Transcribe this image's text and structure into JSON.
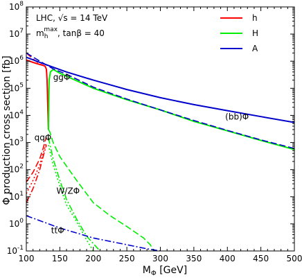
{
  "chart_data": {
    "type": "line",
    "title_lines": [
      "LHC, √s = 14 TeV",
      "m_h^max, tanβ = 40"
    ],
    "title_line1": "LHC, √s = 14 TeV",
    "title_line2_prefix": "m",
    "title_line2_sub": "h",
    "title_line2_sup": "max",
    "title_line2_rest": ", tanβ = 40",
    "xlabel": "M",
    "xlabel_sub": "Φ",
    "xlabel_rest": " [GeV]",
    "ylabel": "Φ production cross section [fb]",
    "xlim": [
      100,
      500
    ],
    "ylim": [
      0.1,
      100000000
    ],
    "yscale": "log",
    "x_ticks": [
      100,
      150,
      200,
      250,
      300,
      350,
      400,
      450,
      500
    ],
    "y_tick_exponents": [
      -1,
      0,
      1,
      2,
      3,
      4,
      5,
      6,
      7,
      8
    ],
    "y_tick_base": "10",
    "legend_position": "top-right",
    "legend": [
      {
        "label": "h",
        "color": "#ff0000"
      },
      {
        "label": "H",
        "color": "#00ee00"
      },
      {
        "label": "A",
        "color": "#0000cc"
      }
    ],
    "annotations": [
      {
        "text": "ggΦ",
        "at": [
          140,
          200000
        ]
      },
      {
        "text": "(bb)Φ",
        "at": [
          432,
          7000
        ]
      },
      {
        "text": "qqΦ",
        "at": [
          112,
          1200
        ]
      },
      {
        "text": "W/ZΦ",
        "at": [
          145,
          13
        ]
      },
      {
        "text": "ttΦ",
        "at": [
          137,
          0.45
        ]
      }
    ],
    "series": [
      {
        "process": "gg",
        "higgs": "h",
        "color": "#ff0000",
        "dash": "solid",
        "points": [
          [
            100,
            1100000
          ],
          [
            110,
            900000
          ],
          [
            120,
            750000
          ],
          [
            125,
            700000
          ],
          [
            128,
            650000
          ],
          [
            130,
            500000
          ],
          [
            131,
            200000
          ],
          [
            132,
            20000
          ],
          [
            133,
            3000
          ]
        ]
      },
      {
        "process": "bb",
        "higgs": "h",
        "color": "#ff0000",
        "dash": "dashed",
        "points": [
          [
            100,
            2000000
          ],
          [
            110,
            1200000
          ],
          [
            120,
            800000
          ],
          [
            125,
            700000
          ],
          [
            128,
            650000
          ],
          [
            130,
            500000
          ],
          [
            131,
            200000
          ],
          [
            132,
            20000
          ],
          [
            133,
            3000
          ]
        ]
      },
      {
        "process": "gg",
        "higgs": "H",
        "color": "#00ee00",
        "dash": "solid",
        "points": [
          [
            133,
            3000
          ],
          [
            134,
            200000
          ],
          [
            136,
            400000
          ],
          [
            140,
            500000
          ],
          [
            150,
            360000
          ],
          [
            200,
            100000
          ],
          [
            250,
            38000
          ],
          [
            300,
            16000
          ],
          [
            350,
            6000
          ],
          [
            400,
            2700
          ],
          [
            450,
            1200
          ],
          [
            500,
            550
          ]
        ]
      },
      {
        "process": "bb",
        "higgs": "H",
        "color": "#00ee00",
        "dash": "dashed",
        "points": [
          [
            133,
            3000
          ],
          [
            134,
            200000
          ],
          [
            136,
            400000
          ],
          [
            140,
            500000
          ],
          [
            150,
            360000
          ],
          [
            200,
            100000
          ],
          [
            250,
            38000
          ],
          [
            300,
            16000
          ],
          [
            350,
            6000
          ],
          [
            400,
            2700
          ],
          [
            450,
            1200
          ],
          [
            500,
            550
          ]
        ]
      },
      {
        "process": "gg",
        "higgs": "A",
        "color": "#0000cc",
        "dash": "solid",
        "points": [
          [
            100,
            1400000
          ],
          [
            120,
            900000
          ],
          [
            140,
            600000
          ],
          [
            160,
            400000
          ],
          [
            200,
            200000
          ],
          [
            250,
            90000
          ],
          [
            300,
            45000
          ],
          [
            350,
            25000
          ],
          [
            400,
            15000
          ],
          [
            450,
            9000
          ],
          [
            500,
            5500
          ]
        ]
      },
      {
        "process": "bb",
        "higgs": "A",
        "color": "#0000cc",
        "dash": "dashed",
        "points": [
          [
            100,
            2000000
          ],
          [
            120,
            1000000
          ],
          [
            140,
            520000
          ],
          [
            160,
            330000
          ],
          [
            200,
            110000
          ],
          [
            250,
            40000
          ],
          [
            300,
            16000
          ],
          [
            350,
            6500
          ],
          [
            400,
            2800
          ],
          [
            450,
            1250
          ],
          [
            500,
            600
          ]
        ]
      },
      {
        "process": "qq",
        "higgs": "h",
        "color": "#ff0000",
        "dash": "dashed",
        "points": [
          [
            100,
            35
          ],
          [
            110,
            80
          ],
          [
            120,
            250
          ],
          [
            125,
            600
          ],
          [
            128,
            1100
          ],
          [
            130,
            1600
          ]
        ]
      },
      {
        "process": "qq",
        "higgs": "H",
        "color": "#00ee00",
        "dash": "dashed",
        "points": [
          [
            133,
            3000
          ],
          [
            135,
            2500
          ],
          [
            140,
            1000
          ],
          [
            150,
            300
          ],
          [
            175,
            40
          ],
          [
            200,
            6
          ],
          [
            225,
            2
          ],
          [
            250,
            0.8
          ],
          [
            275,
            0.3
          ],
          [
            285,
            0.17
          ],
          [
            290,
            0.1
          ]
        ]
      },
      {
        "process": "WZ",
        "higgs": "h",
        "color": "#ff0000",
        "dash": "dotted",
        "points": [
          [
            100,
            13
          ],
          [
            110,
            40
          ],
          [
            120,
            150
          ],
          [
            125,
            400
          ],
          [
            130,
            1000
          ]
        ]
      },
      {
        "process": "WZ",
        "higgs": "h",
        "color": "#ff0000",
        "dash": "dashdot",
        "points": [
          [
            100,
            6
          ],
          [
            110,
            20
          ],
          [
            120,
            100
          ],
          [
            125,
            300
          ],
          [
            130,
            800
          ]
        ]
      },
      {
        "process": "WZ",
        "higgs": "H",
        "color": "#00ee00",
        "dash": "dotted",
        "points": [
          [
            133,
            800
          ],
          [
            140,
            150
          ],
          [
            150,
            25
          ],
          [
            160,
            5
          ],
          [
            175,
            1.2
          ],
          [
            190,
            0.25
          ],
          [
            200,
            0.1
          ]
        ]
      },
      {
        "process": "WZ",
        "higgs": "H",
        "color": "#00ee00",
        "dash": "dashdot",
        "points": [
          [
            133,
            1500
          ],
          [
            140,
            250
          ],
          [
            150,
            40
          ],
          [
            160,
            8
          ],
          [
            175,
            1.5
          ],
          [
            190,
            0.35
          ],
          [
            210,
            0.1
          ]
        ]
      },
      {
        "process": "tt",
        "higgs": "A",
        "color": "#0000cc",
        "dash": "dashdot",
        "points": [
          [
            100,
            2
          ],
          [
            150,
            0.7
          ],
          [
            200,
            0.3
          ],
          [
            250,
            0.17
          ],
          [
            280,
            0.12
          ],
          [
            300,
            0.1
          ]
        ]
      }
    ]
  }
}
